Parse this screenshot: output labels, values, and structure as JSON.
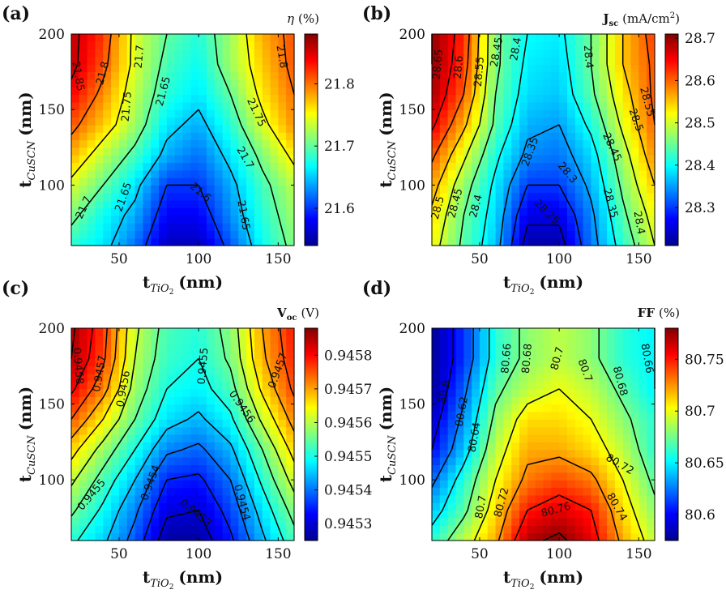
{
  "chart_data": [
    {
      "type": "heatmap",
      "panel_label": "(a)",
      "colorbar_title": "η (%)",
      "colorbar_symbol": "η",
      "colorbar_unit": "(%)",
      "xlabel": "tTiO2 (nm)",
      "xlabel_var": "t",
      "xlabel_sub": "TiO",
      "xlabel_sub2": "2",
      "xlabel_unit": "(nm)",
      "ylabel": "tCuSCN (nm)",
      "ylabel_var": "t",
      "ylabel_sub": "CuSCN",
      "ylabel_unit": "(nm)",
      "xlim": [
        20,
        160
      ],
      "ylim": [
        60,
        200
      ],
      "xticks": [
        50,
        100,
        150
      ],
      "xtick_labels": [
        "50",
        "100",
        "150"
      ],
      "yticks": [
        100,
        150,
        200
      ],
      "ytick_labels": [
        "100",
        "150",
        "200"
      ],
      "clim": [
        21.54,
        21.88
      ],
      "cticks": [
        21.6,
        21.7,
        21.8
      ],
      "ctick_labels": [
        "21.6",
        "21.7",
        "21.8"
      ],
      "x": [
        20,
        40,
        60,
        80,
        100,
        120,
        140,
        160
      ],
      "y": [
        60,
        80,
        100,
        120,
        140,
        160,
        180,
        200
      ],
      "z": [
        [
          21.68,
          21.66,
          21.62,
          21.56,
          21.56,
          21.61,
          21.67,
          21.71
        ],
        [
          21.71,
          21.67,
          21.64,
          21.58,
          21.58,
          21.63,
          21.68,
          21.72
        ],
        [
          21.74,
          21.7,
          21.66,
          21.6,
          21.6,
          21.64,
          21.69,
          21.73
        ],
        [
          21.78,
          21.73,
          21.69,
          21.64,
          21.62,
          21.66,
          21.71,
          21.76
        ],
        [
          21.81,
          21.77,
          21.72,
          21.66,
          21.64,
          21.68,
          21.74,
          21.79
        ],
        [
          21.84,
          21.79,
          21.73,
          21.68,
          21.66,
          21.7,
          21.76,
          21.8
        ],
        [
          21.86,
          21.81,
          21.74,
          21.69,
          21.67,
          21.72,
          21.77,
          21.81
        ],
        [
          21.86,
          21.82,
          21.74,
          21.7,
          21.68,
          21.72,
          21.78,
          21.81
        ]
      ],
      "contour_labels": [
        {
          "text": "21.85",
          "x": 24,
          "y": 172,
          "rot": 80
        },
        {
          "text": "21.8",
          "x": 40,
          "y": 174,
          "rot": -75
        },
        {
          "text": "21.75",
          "x": 55,
          "y": 152,
          "rot": -85
        },
        {
          "text": "21.7",
          "x": 63,
          "y": 185,
          "rot": -85
        },
        {
          "text": "21.65",
          "x": 78,
          "y": 162,
          "rot": -75
        },
        {
          "text": "21.75",
          "x": 136,
          "y": 148,
          "rot": 65
        },
        {
          "text": "21.8",
          "x": 152,
          "y": 185,
          "rot": 80
        },
        {
          "text": "21.7",
          "x": 129,
          "y": 118,
          "rot": 60
        },
        {
          "text": "21.6",
          "x": 101,
          "y": 95,
          "rot": 40
        },
        {
          "text": "21.7",
          "x": 28,
          "y": 85,
          "rot": -65
        },
        {
          "text": "21.65",
          "x": 53,
          "y": 92,
          "rot": -70
        },
        {
          "text": "21.65",
          "x": 128,
          "y": 80,
          "rot": 80
        }
      ]
    },
    {
      "type": "heatmap",
      "panel_label": "(b)",
      "colorbar_title": "Jsc (mA/cm2)",
      "colorbar_symbol": "J",
      "colorbar_sub": "sc",
      "colorbar_unit": "(mA/cm",
      "colorbar_unit_sup": "2",
      "colorbar_unit_end": ")",
      "xlabel": "tTiO2 (nm)",
      "xlabel_var": "t",
      "xlabel_sub": "TiO",
      "xlabel_sub2": "2",
      "xlabel_unit": "(nm)",
      "ylabel": "tCuSCN (nm)",
      "ylabel_var": "t",
      "ylabel_sub": "CuSCN",
      "ylabel_unit": "(nm)",
      "xlim": [
        20,
        160
      ],
      "ylim": [
        60,
        200
      ],
      "xticks": [
        50,
        100,
        150
      ],
      "xtick_labels": [
        "50",
        "100",
        "150"
      ],
      "yticks": [
        100,
        150,
        200
      ],
      "ytick_labels": [
        "100",
        "150",
        "200"
      ],
      "clim": [
        28.21,
        28.71
      ],
      "cticks": [
        28.3,
        28.4,
        28.5,
        28.6,
        28.7
      ],
      "ctick_labels": [
        "28.3",
        "28.4",
        "28.5",
        "28.6",
        "28.7"
      ],
      "x": [
        20,
        40,
        60,
        80,
        100,
        120,
        140,
        160
      ],
      "y": [
        60,
        80,
        100,
        120,
        140,
        160,
        180,
        200
      ],
      "z": [
        [
          28.52,
          28.44,
          28.37,
          28.23,
          28.23,
          28.33,
          28.42,
          28.5
        ],
        [
          28.54,
          28.45,
          28.38,
          28.26,
          28.26,
          28.34,
          28.44,
          28.52
        ],
        [
          28.57,
          28.47,
          28.39,
          28.3,
          28.3,
          28.36,
          28.46,
          28.55
        ],
        [
          28.61,
          28.51,
          28.41,
          28.34,
          28.33,
          28.38,
          28.48,
          28.58
        ],
        [
          28.66,
          28.56,
          28.44,
          28.36,
          28.35,
          28.41,
          28.51,
          28.6
        ],
        [
          28.69,
          28.6,
          28.45,
          28.38,
          28.37,
          28.44,
          28.53,
          28.61
        ],
        [
          28.7,
          28.62,
          28.46,
          28.39,
          28.38,
          28.45,
          28.55,
          28.61
        ],
        [
          28.7,
          28.63,
          28.46,
          28.4,
          28.39,
          28.45,
          28.55,
          28.62
        ]
      ],
      "contour_labels": [
        {
          "text": "28.65",
          "x": 24,
          "y": 180,
          "rot": -85
        },
        {
          "text": "28.6",
          "x": 37,
          "y": 178,
          "rot": -85
        },
        {
          "text": "28.55",
          "x": 50,
          "y": 175,
          "rot": -85
        },
        {
          "text": "28.45",
          "x": 61,
          "y": 188,
          "rot": -80
        },
        {
          "text": "28.4",
          "x": 73,
          "y": 190,
          "rot": -80
        },
        {
          "text": "28.4",
          "x": 118,
          "y": 185,
          "rot": 85
        },
        {
          "text": "28.55",
          "x": 155,
          "y": 155,
          "rot": 75
        },
        {
          "text": "28.5",
          "x": 148,
          "y": 143,
          "rot": 70
        },
        {
          "text": "28.45",
          "x": 133,
          "y": 125,
          "rot": 65
        },
        {
          "text": "28.35",
          "x": 82,
          "y": 122,
          "rot": -70
        },
        {
          "text": "28.3",
          "x": 105,
          "y": 108,
          "rot": 50
        },
        {
          "text": "28.25",
          "x": 92,
          "y": 82,
          "rot": 45
        },
        {
          "text": "28.35",
          "x": 132,
          "y": 88,
          "rot": 75
        },
        {
          "text": "28.4",
          "x": 150,
          "y": 75,
          "rot": 80
        },
        {
          "text": "28.5",
          "x": 24,
          "y": 85,
          "rot": -75
        },
        {
          "text": "28.45",
          "x": 35,
          "y": 88,
          "rot": -75
        },
        {
          "text": "28.4",
          "x": 48,
          "y": 86,
          "rot": -75
        }
      ]
    },
    {
      "type": "heatmap",
      "panel_label": "(c)",
      "colorbar_title": "Voc (V)",
      "colorbar_symbol": "V",
      "colorbar_sub": "oc",
      "colorbar_unit": "(V)",
      "xlabel": "tTiO2 (nm)",
      "xlabel_var": "t",
      "xlabel_sub": "TiO",
      "xlabel_sub2": "2",
      "xlabel_unit": "(nm)",
      "ylabel": "tCuSCN (nm)",
      "ylabel_var": "t",
      "ylabel_sub": "CuSCN",
      "ylabel_unit": "(nm)",
      "xlim": [
        20,
        160
      ],
      "ylim": [
        60,
        200
      ],
      "xticks": [
        50,
        100,
        150
      ],
      "xtick_labels": [
        "50",
        "100",
        "150"
      ],
      "yticks": [
        100,
        150,
        200
      ],
      "ytick_labels": [
        "100",
        "150",
        "200"
      ],
      "clim": [
        0.94525,
        0.94588
      ],
      "cticks": [
        0.9453,
        0.9454,
        0.9455,
        0.9456,
        0.9457,
        0.9458
      ],
      "ctick_labels": [
        "0.9453",
        "0.9454",
        "0.9455",
        "0.9456",
        "0.9457",
        "0.9458"
      ],
      "x": [
        20,
        40,
        60,
        80,
        100,
        120,
        140,
        160
      ],
      "y": [
        60,
        80,
        100,
        120,
        140,
        160,
        180,
        200
      ],
      "z": [
        [
          0.94551,
          0.94546,
          0.94538,
          0.94527,
          0.94527,
          0.94534,
          0.94544,
          0.94553
        ],
        [
          0.94556,
          0.94549,
          0.94541,
          0.94531,
          0.9453,
          0.94537,
          0.94547,
          0.94557
        ],
        [
          0.94561,
          0.94553,
          0.94545,
          0.94535,
          0.94534,
          0.9454,
          0.94551,
          0.94562
        ],
        [
          0.94567,
          0.94558,
          0.9455,
          0.94541,
          0.94539,
          0.94544,
          0.94555,
          0.94567
        ],
        [
          0.94575,
          0.94565,
          0.94555,
          0.94547,
          0.94544,
          0.94549,
          0.94561,
          0.94572
        ],
        [
          0.94581,
          0.94572,
          0.94558,
          0.9455,
          0.94548,
          0.94553,
          0.94566,
          0.94576
        ],
        [
          0.94585,
          0.94576,
          0.9456,
          0.94552,
          0.9455,
          0.94556,
          0.94569,
          0.94578
        ],
        [
          0.94586,
          0.94577,
          0.94561,
          0.94553,
          0.94551,
          0.94557,
          0.9457,
          0.94579
        ]
      ],
      "contour_labels": [
        {
          "text": "0.9458",
          "x": 24,
          "y": 175,
          "rot": 85
        },
        {
          "text": "0.9457",
          "x": 38,
          "y": 170,
          "rot": -80
        },
        {
          "text": "0.9456",
          "x": 53,
          "y": 160,
          "rot": -80
        },
        {
          "text": "0.9455",
          "x": 103,
          "y": 175,
          "rot": -85
        },
        {
          "text": "0.9456",
          "x": 127,
          "y": 148,
          "rot": 55
        },
        {
          "text": "0.9457",
          "x": 150,
          "y": 172,
          "rot": -70
        },
        {
          "text": "0.9455",
          "x": 33,
          "y": 90,
          "rot": -50
        },
        {
          "text": "0.9454",
          "x": 70,
          "y": 98,
          "rot": -70
        },
        {
          "text": "0.9453",
          "x": 98,
          "y": 78,
          "rot": 40
        },
        {
          "text": "0.9454",
          "x": 127,
          "y": 85,
          "rot": 75
        }
      ]
    },
    {
      "type": "heatmap",
      "panel_label": "(d)",
      "colorbar_title": "FF (%)",
      "colorbar_symbol": "FF",
      "colorbar_unit": "(%)",
      "xlabel": "tTiO2 (nm)",
      "xlabel_var": "t",
      "xlabel_sub": "TiO",
      "xlabel_sub2": "2",
      "xlabel_unit": "(nm)",
      "ylabel": "tCuSCN (nm)",
      "ylabel_var": "t",
      "ylabel_sub": "CuSCN",
      "ylabel_unit": "(nm)",
      "xlim": [
        20,
        160
      ],
      "ylim": [
        60,
        200
      ],
      "xticks": [
        50,
        100,
        150
      ],
      "xtick_labels": [
        "50",
        "100",
        "150"
      ],
      "yticks": [
        100,
        150,
        200
      ],
      "ytick_labels": [
        "100",
        "150",
        "200"
      ],
      "clim": [
        80.575,
        80.78
      ],
      "cticks": [
        80.6,
        80.65,
        80.7,
        80.75
      ],
      "ctick_labels": [
        "80.6",
        "80.65",
        "80.7",
        "80.75"
      ],
      "x": [
        20,
        40,
        60,
        80,
        100,
        120,
        140,
        160
      ],
      "y": [
        60,
        80,
        100,
        120,
        140,
        160,
        180,
        200
      ],
      "z": [
        [
          80.66,
          80.69,
          80.72,
          80.77,
          80.78,
          80.76,
          80.72,
          80.69
        ],
        [
          80.64,
          80.67,
          80.71,
          80.75,
          80.76,
          80.75,
          80.71,
          80.68
        ],
        [
          80.62,
          80.66,
          80.7,
          80.73,
          80.74,
          80.73,
          80.7,
          80.67
        ],
        [
          80.6,
          80.64,
          80.69,
          80.72,
          80.72,
          80.71,
          80.69,
          80.66
        ],
        [
          80.59,
          80.63,
          80.68,
          80.71,
          80.71,
          80.7,
          80.68,
          80.66
        ],
        [
          80.58,
          80.62,
          80.67,
          80.69,
          80.7,
          80.69,
          80.67,
          80.65
        ],
        [
          80.58,
          80.61,
          80.66,
          80.68,
          80.69,
          80.68,
          80.66,
          80.65
        ],
        [
          80.58,
          80.61,
          80.66,
          80.68,
          80.69,
          80.68,
          80.66,
          80.65
        ]
      ],
      "contour_labels": [
        {
          "text": "80.6",
          "x": 28,
          "y": 158,
          "rot": -80
        },
        {
          "text": "80.62",
          "x": 39,
          "y": 145,
          "rot": -80
        },
        {
          "text": "80.64",
          "x": 47,
          "y": 128,
          "rot": -80
        },
        {
          "text": "80.66",
          "x": 67,
          "y": 180,
          "rot": -85
        },
        {
          "text": "80.68",
          "x": 80,
          "y": 180,
          "rot": -85
        },
        {
          "text": "80.7",
          "x": 99,
          "y": 180,
          "rot": -75
        },
        {
          "text": "80.7",
          "x": 116,
          "y": 172,
          "rot": 70
        },
        {
          "text": "80.68",
          "x": 138,
          "y": 165,
          "rot": 75
        },
        {
          "text": "80.66",
          "x": 155,
          "y": 180,
          "rot": 80
        },
        {
          "text": "80.72",
          "x": 138,
          "y": 110,
          "rot": 30
        },
        {
          "text": "80.74",
          "x": 136,
          "y": 82,
          "rot": 60
        },
        {
          "text": "80.76",
          "x": 98,
          "y": 80,
          "rot": -15
        },
        {
          "text": "80.72",
          "x": 64,
          "y": 85,
          "rot": -75
        },
        {
          "text": "80.7",
          "x": 51,
          "y": 82,
          "rot": -80
        }
      ]
    }
  ]
}
